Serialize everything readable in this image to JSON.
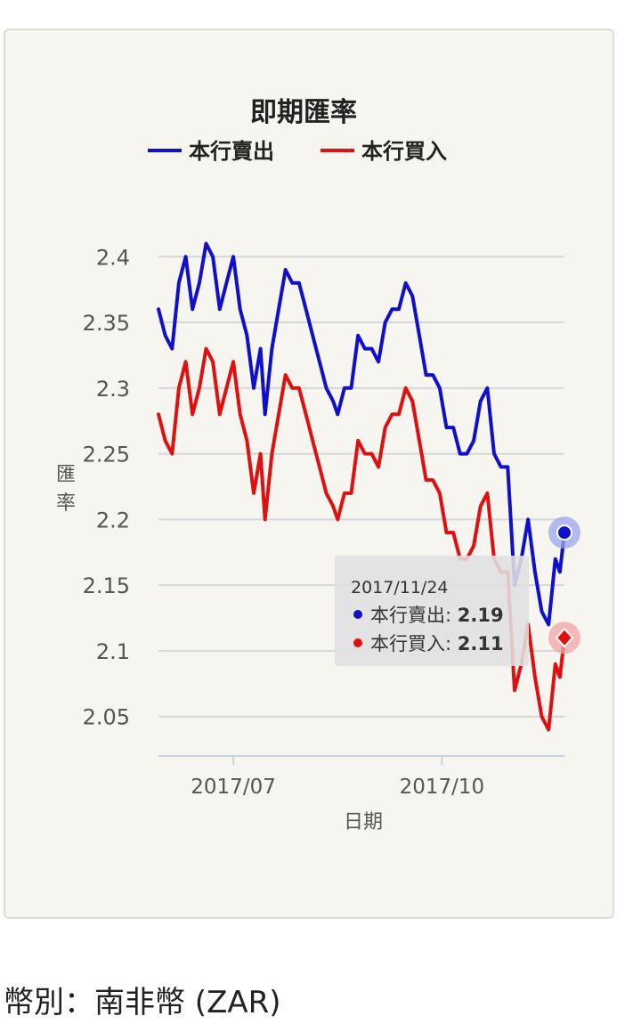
{
  "currency_label": "幣別：南非幣 (ZAR)",
  "colors": {
    "sell": "#1010cc",
    "buy": "#e01010",
    "card_bg": "#f6f5f0",
    "grid": "#d8dcdc"
  },
  "chart_data": {
    "type": "line",
    "title": "即期匯率",
    "xlabel": "日期",
    "ylabel": "匯率",
    "ylim": [
      2.02,
      2.43
    ],
    "yticks": [
      2.05,
      2.1,
      2.15,
      2.2,
      2.25,
      2.3,
      2.35,
      2.4
    ],
    "ytick_labels": [
      "2.05",
      "2.1",
      "2.15",
      "2.2",
      "2.25",
      "2.3",
      "2.35",
      "2.4"
    ],
    "xlim": [
      "2017-05-29",
      "2017-11-24"
    ],
    "xtick_dates": [
      "2017-07-01",
      "2017-10-01"
    ],
    "xtick_labels": [
      "2017/07",
      "2017/10"
    ],
    "legend_position": "top",
    "grid": true,
    "series": [
      {
        "name": "本行賣出",
        "color": "#1010cc",
        "points": [
          [
            "2017-05-29",
            2.36
          ],
          [
            "2017-06-01",
            2.34
          ],
          [
            "2017-06-04",
            2.33
          ],
          [
            "2017-06-07",
            2.38
          ],
          [
            "2017-06-10",
            2.4
          ],
          [
            "2017-06-13",
            2.36
          ],
          [
            "2017-06-16",
            2.38
          ],
          [
            "2017-06-19",
            2.41
          ],
          [
            "2017-06-22",
            2.4
          ],
          [
            "2017-06-25",
            2.36
          ],
          [
            "2017-06-28",
            2.38
          ],
          [
            "2017-07-01",
            2.4
          ],
          [
            "2017-07-04",
            2.36
          ],
          [
            "2017-07-07",
            2.34
          ],
          [
            "2017-07-10",
            2.3
          ],
          [
            "2017-07-13",
            2.33
          ],
          [
            "2017-07-15",
            2.28
          ],
          [
            "2017-07-18",
            2.33
          ],
          [
            "2017-07-21",
            2.36
          ],
          [
            "2017-07-24",
            2.39
          ],
          [
            "2017-07-27",
            2.38
          ],
          [
            "2017-07-30",
            2.38
          ],
          [
            "2017-08-02",
            2.36
          ],
          [
            "2017-08-05",
            2.34
          ],
          [
            "2017-08-08",
            2.32
          ],
          [
            "2017-08-11",
            2.3
          ],
          [
            "2017-08-14",
            2.29
          ],
          [
            "2017-08-16",
            2.28
          ],
          [
            "2017-08-19",
            2.3
          ],
          [
            "2017-08-22",
            2.3
          ],
          [
            "2017-08-25",
            2.34
          ],
          [
            "2017-08-28",
            2.33
          ],
          [
            "2017-08-31",
            2.33
          ],
          [
            "2017-09-03",
            2.32
          ],
          [
            "2017-09-06",
            2.35
          ],
          [
            "2017-09-09",
            2.36
          ],
          [
            "2017-09-12",
            2.36
          ],
          [
            "2017-09-15",
            2.38
          ],
          [
            "2017-09-18",
            2.37
          ],
          [
            "2017-09-21",
            2.34
          ],
          [
            "2017-09-24",
            2.31
          ],
          [
            "2017-09-27",
            2.31
          ],
          [
            "2017-09-30",
            2.3
          ],
          [
            "2017-10-03",
            2.27
          ],
          [
            "2017-10-06",
            2.27
          ],
          [
            "2017-10-09",
            2.25
          ],
          [
            "2017-10-12",
            2.25
          ],
          [
            "2017-10-15",
            2.26
          ],
          [
            "2017-10-18",
            2.29
          ],
          [
            "2017-10-21",
            2.3
          ],
          [
            "2017-10-24",
            2.25
          ],
          [
            "2017-10-27",
            2.24
          ],
          [
            "2017-10-30",
            2.24
          ],
          [
            "2017-11-02",
            2.15
          ],
          [
            "2017-11-05",
            2.17
          ],
          [
            "2017-11-08",
            2.2
          ],
          [
            "2017-11-11",
            2.16
          ],
          [
            "2017-11-14",
            2.13
          ],
          [
            "2017-11-17",
            2.12
          ],
          [
            "2017-11-20",
            2.17
          ],
          [
            "2017-11-22",
            2.16
          ],
          [
            "2017-11-24",
            2.19
          ]
        ]
      },
      {
        "name": "本行買入",
        "color": "#e01010",
        "points": [
          [
            "2017-05-29",
            2.28
          ],
          [
            "2017-06-01",
            2.26
          ],
          [
            "2017-06-04",
            2.25
          ],
          [
            "2017-06-07",
            2.3
          ],
          [
            "2017-06-10",
            2.32
          ],
          [
            "2017-06-13",
            2.28
          ],
          [
            "2017-06-16",
            2.3
          ],
          [
            "2017-06-19",
            2.33
          ],
          [
            "2017-06-22",
            2.32
          ],
          [
            "2017-06-25",
            2.28
          ],
          [
            "2017-06-28",
            2.3
          ],
          [
            "2017-07-01",
            2.32
          ],
          [
            "2017-07-04",
            2.28
          ],
          [
            "2017-07-07",
            2.26
          ],
          [
            "2017-07-10",
            2.22
          ],
          [
            "2017-07-13",
            2.25
          ],
          [
            "2017-07-15",
            2.2
          ],
          [
            "2017-07-18",
            2.25
          ],
          [
            "2017-07-21",
            2.28
          ],
          [
            "2017-07-24",
            2.31
          ],
          [
            "2017-07-27",
            2.3
          ],
          [
            "2017-07-30",
            2.3
          ],
          [
            "2017-08-02",
            2.28
          ],
          [
            "2017-08-05",
            2.26
          ],
          [
            "2017-08-08",
            2.24
          ],
          [
            "2017-08-11",
            2.22
          ],
          [
            "2017-08-14",
            2.21
          ],
          [
            "2017-08-16",
            2.2
          ],
          [
            "2017-08-19",
            2.22
          ],
          [
            "2017-08-22",
            2.22
          ],
          [
            "2017-08-25",
            2.26
          ],
          [
            "2017-08-28",
            2.25
          ],
          [
            "2017-08-31",
            2.25
          ],
          [
            "2017-09-03",
            2.24
          ],
          [
            "2017-09-06",
            2.27
          ],
          [
            "2017-09-09",
            2.28
          ],
          [
            "2017-09-12",
            2.28
          ],
          [
            "2017-09-15",
            2.3
          ],
          [
            "2017-09-18",
            2.29
          ],
          [
            "2017-09-21",
            2.26
          ],
          [
            "2017-09-24",
            2.23
          ],
          [
            "2017-09-27",
            2.23
          ],
          [
            "2017-09-30",
            2.22
          ],
          [
            "2017-10-03",
            2.19
          ],
          [
            "2017-10-06",
            2.19
          ],
          [
            "2017-10-09",
            2.17
          ],
          [
            "2017-10-12",
            2.17
          ],
          [
            "2017-10-15",
            2.18
          ],
          [
            "2017-10-18",
            2.21
          ],
          [
            "2017-10-21",
            2.22
          ],
          [
            "2017-10-24",
            2.17
          ],
          [
            "2017-10-27",
            2.16
          ],
          [
            "2017-10-30",
            2.16
          ],
          [
            "2017-11-02",
            2.07
          ],
          [
            "2017-11-05",
            2.09
          ],
          [
            "2017-11-08",
            2.12
          ],
          [
            "2017-11-11",
            2.08
          ],
          [
            "2017-11-14",
            2.05
          ],
          [
            "2017-11-17",
            2.04
          ],
          [
            "2017-11-20",
            2.09
          ],
          [
            "2017-11-22",
            2.08
          ],
          [
            "2017-11-24",
            2.11
          ]
        ]
      }
    ],
    "tooltip": {
      "date": "2017/11/24",
      "rows": [
        {
          "series": "本行賣出",
          "label": "本行賣出: ",
          "value": "2.19"
        },
        {
          "series": "本行買入",
          "label": "本行買入: ",
          "value": "2.11"
        }
      ]
    }
  }
}
